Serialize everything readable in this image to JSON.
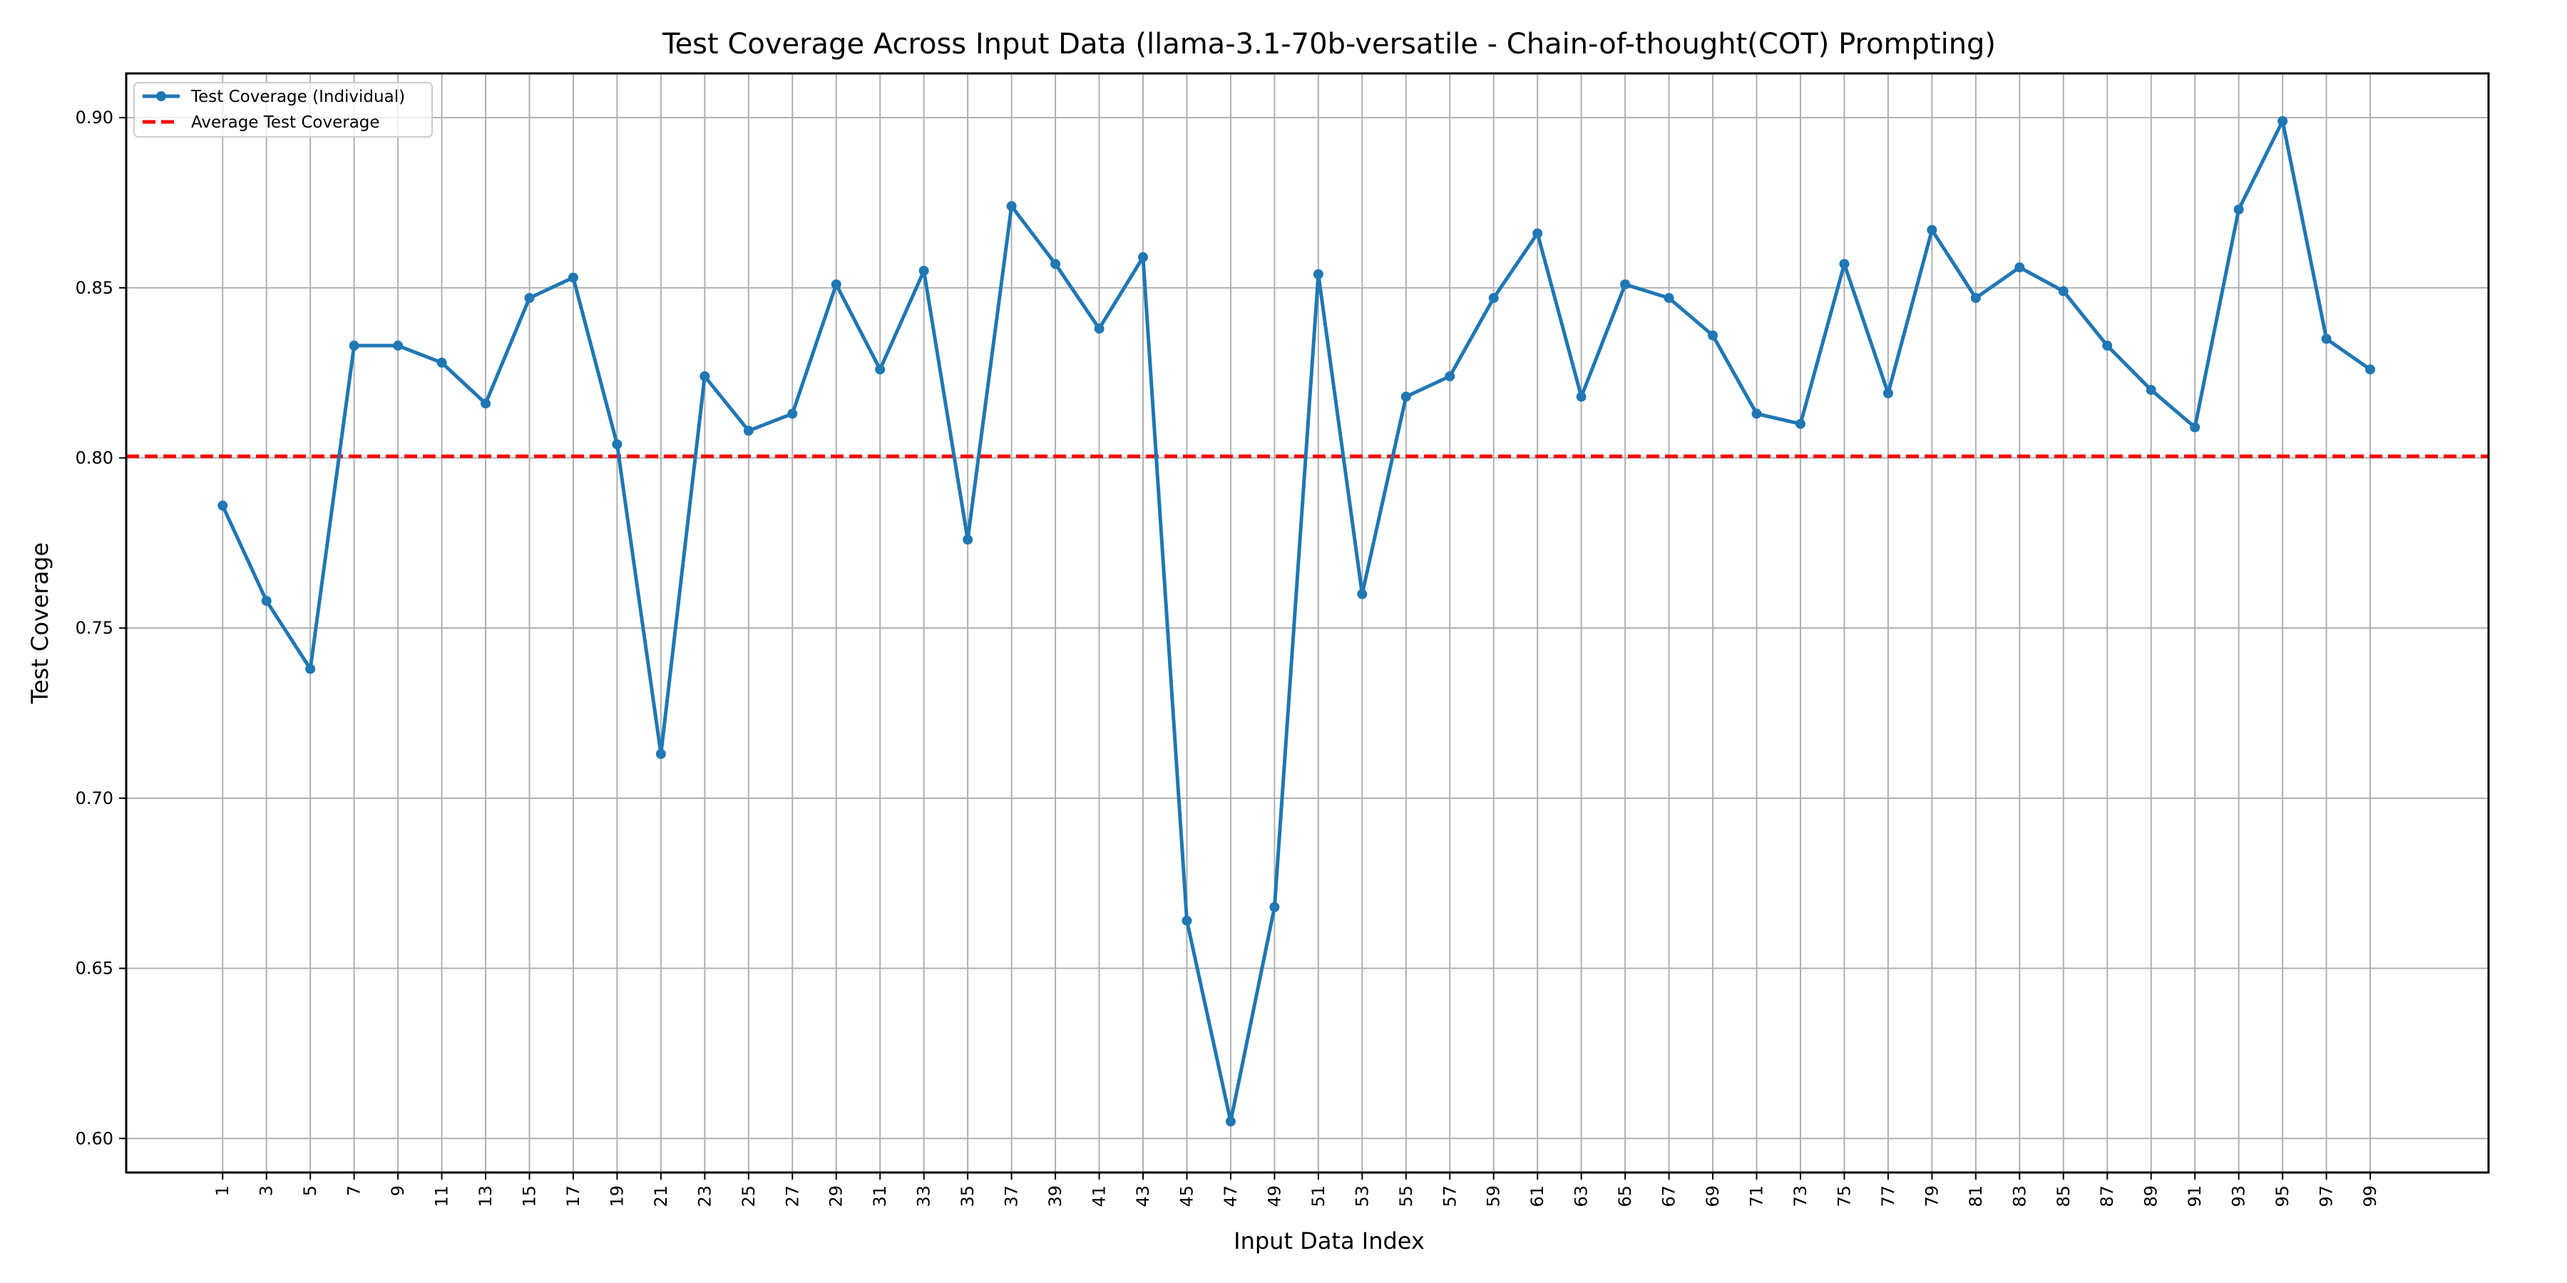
{
  "chart_data": {
    "type": "line",
    "title": "Test Coverage Across Input Data (llama-3.1-70b-versatile - Chain-of-thought(COT) Prompting)",
    "xlabel": "Input Data Index",
    "ylabel": "Test Coverage",
    "xlim": [
      -3.4,
      104.4
    ],
    "ylim": [
      0.59,
      0.913
    ],
    "grid": true,
    "legend_position": "top-left",
    "x_ticks": [
      1,
      3,
      5,
      7,
      9,
      11,
      13,
      15,
      17,
      19,
      21,
      23,
      25,
      27,
      29,
      31,
      33,
      35,
      37,
      39,
      41,
      43,
      45,
      47,
      49,
      51,
      53,
      55,
      57,
      59,
      61,
      63,
      65,
      67,
      69,
      71,
      73,
      75,
      77,
      79,
      81,
      83,
      85,
      87,
      89,
      91,
      93,
      95,
      97,
      99
    ],
    "x_tick_labels": [
      "1",
      "3",
      "5",
      "7",
      "9",
      "11",
      "13",
      "15",
      "17",
      "19",
      "21",
      "23",
      "25",
      "27",
      "29",
      "31",
      "33",
      "35",
      "37",
      "39",
      "41",
      "43",
      "45",
      "47",
      "49",
      "51",
      "53",
      "55",
      "57",
      "59",
      "61",
      "63",
      "65",
      "67",
      "69",
      "71",
      "73",
      "75",
      "77",
      "79",
      "81",
      "83",
      "85",
      "87",
      "89",
      "91",
      "93",
      "95",
      "97",
      "99"
    ],
    "y_ticks": [
      0.6,
      0.65,
      0.7,
      0.75,
      0.8,
      0.85,
      0.9
    ],
    "y_tick_labels": [
      "0.60",
      "0.65",
      "0.70",
      "0.75",
      "0.80",
      "0.85",
      "0.90"
    ],
    "series": [
      {
        "name": "Test Coverage (Individual)",
        "color": "#1f77b4",
        "style": "solid-with-markers",
        "x": [
          1,
          3,
          5,
          7,
          9,
          11,
          13,
          15,
          17,
          19,
          21,
          23,
          25,
          27,
          29,
          31,
          33,
          35,
          37,
          39,
          41,
          43,
          45,
          47,
          49,
          51,
          53,
          55,
          57,
          59,
          61,
          63,
          65,
          67,
          69,
          71,
          73,
          75,
          77,
          79,
          81,
          83,
          85,
          87,
          89,
          91,
          93,
          95,
          97,
          99
        ],
        "y": [
          0.786,
          0.758,
          0.738,
          0.833,
          0.833,
          0.828,
          0.816,
          0.847,
          0.853,
          0.804,
          0.713,
          0.824,
          0.808,
          0.813,
          0.851,
          0.826,
          0.855,
          0.776,
          0.874,
          0.857,
          0.838,
          0.859,
          0.664,
          0.605,
          0.668,
          0.854,
          0.76,
          0.818,
          0.824,
          0.847,
          0.866,
          0.818,
          0.851,
          0.847,
          0.836,
          0.813,
          0.81,
          0.857,
          0.819,
          0.867,
          0.847,
          0.856,
          0.849,
          0.833,
          0.82,
          0.809,
          0.873,
          0.899,
          0.835,
          0.826
        ]
      },
      {
        "name": "Average Test Coverage",
        "color": "#ff0000",
        "style": "dashed",
        "y": 0.8005
      }
    ]
  }
}
